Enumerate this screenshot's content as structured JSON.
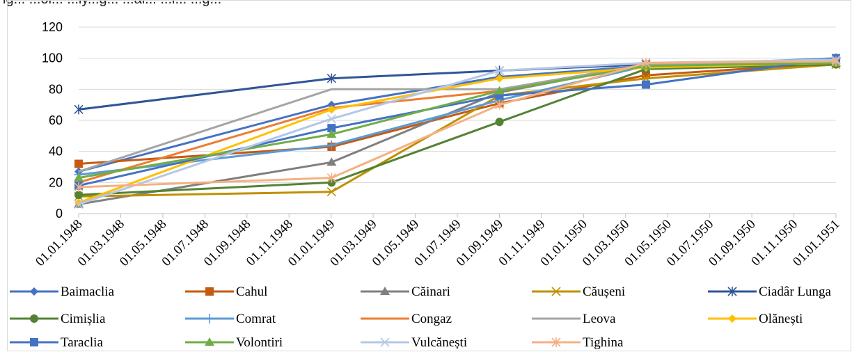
{
  "header_fragment": "ig... ...oi... ...ly...g... ...al... ...i... ...g...",
  "chart_data": {
    "type": "line",
    "title": "",
    "xlabel": "",
    "ylabel": "",
    "ylim": [
      0,
      120
    ],
    "yticks": [
      0,
      20,
      40,
      60,
      80,
      100,
      120
    ],
    "xticks": [
      "01.01.1948",
      "01.03.1948",
      "01.05.1948",
      "01.07.1948",
      "01.09.1948",
      "01.11.1948",
      "01.01.1949",
      "01.03.1949",
      "01.05.1949",
      "01.07.1949",
      "01.09.1949",
      "01.11.1949",
      "01.01.1950",
      "01.03.1950",
      "01.05.1950",
      "01.07.1950",
      "01.09.1950",
      "01.11.1950",
      "01.01.1951"
    ],
    "x": [
      "1948-01-01",
      "1949-01-01",
      "1949-09-01",
      "1950-04-01",
      "1951-01-01"
    ],
    "grid": "horizontal",
    "legend_position": "bottom",
    "series": [
      {
        "name": "Baimaclia",
        "color": "#4472C4",
        "marker": "diamond",
        "values": [
          27,
          70,
          88,
          95,
          98
        ]
      },
      {
        "name": "Cahul",
        "color": "#C55A11",
        "marker": "square",
        "values": [
          32,
          43,
          71,
          89,
          97
        ]
      },
      {
        "name": "Căinari",
        "color": "#7F7F7F",
        "marker": "triangle",
        "values": [
          6,
          33,
          78,
          96,
          97
        ]
      },
      {
        "name": "Căușeni",
        "color": "#BF9000",
        "marker": "x",
        "values": [
          11,
          14,
          76,
          87,
          96
        ]
      },
      {
        "name": "Ciadâr Lunga",
        "color": "#2F5597",
        "marker": "asterisk",
        "values": [
          67,
          87,
          92,
          96,
          99
        ]
      },
      {
        "name": "Cimișlia",
        "color": "#548235",
        "marker": "circle",
        "values": [
          12,
          20,
          59,
          93,
          96
        ]
      },
      {
        "name": "Comrat",
        "color": "#5B9BD5",
        "marker": "plus",
        "values": [
          25,
          44,
          73,
          95,
          100
        ]
      },
      {
        "name": "Congaz",
        "color": "#ED7D31",
        "marker": "none",
        "values": [
          20,
          68,
          79,
          95,
          97
        ]
      },
      {
        "name": "Leova",
        "color": "#A5A5A5",
        "marker": "none",
        "values": [
          27,
          80,
          80,
          96,
          98
        ]
      },
      {
        "name": "Olănești",
        "color": "#FFC000",
        "marker": "diamond",
        "values": [
          7,
          67,
          87,
          94,
          97
        ]
      },
      {
        "name": "Taraclia",
        "color": "#4472C4",
        "marker": "square",
        "values": [
          18,
          55,
          76,
          83,
          100
        ]
      },
      {
        "name": "Volontiri",
        "color": "#70AD47",
        "marker": "triangle",
        "values": [
          23,
          51,
          79,
          95,
          97
        ]
      },
      {
        "name": "Vulcănești",
        "color": "#B4C7E7",
        "marker": "x",
        "values": [
          6,
          61,
          92,
          97,
          99
        ]
      },
      {
        "name": "Tighina",
        "color": "#F4B183",
        "marker": "asterisk",
        "values": [
          17,
          23,
          70,
          97,
          98
        ]
      }
    ]
  }
}
